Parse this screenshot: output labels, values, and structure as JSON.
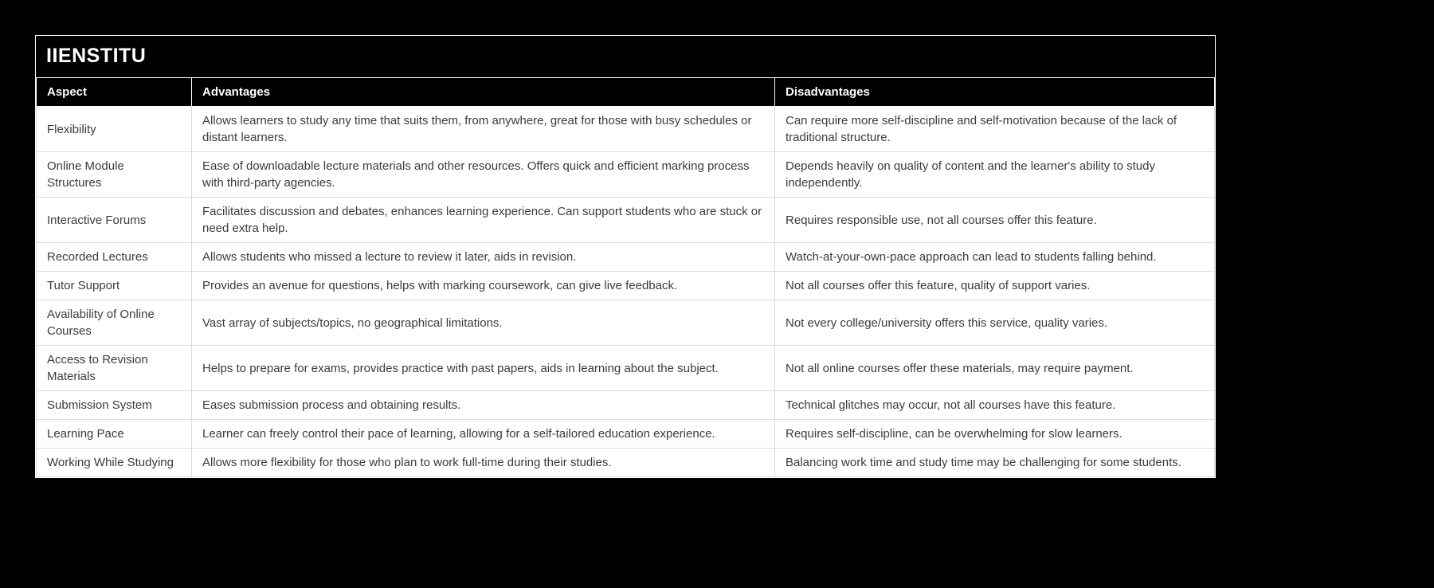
{
  "page": {
    "title": "IIENSTITU"
  },
  "colors": {
    "page_background": "#000000",
    "panel_border": "#ffffff",
    "header_background": "#000000",
    "header_text": "#ffffff",
    "body_background": "#ffffff",
    "body_text": "#3b3b3b",
    "row_divider": "#dcdcdc"
  },
  "table": {
    "columns": [
      "Aspect",
      "Advantages",
      "Disadvantages"
    ],
    "rows": [
      {
        "aspect": "Flexibility",
        "advantages": "Allows learners to study any time that suits them, from anywhere, great for those with busy schedules or distant learners.",
        "disadvantages": "Can require more self-discipline and self-motivation because of the lack of traditional structure."
      },
      {
        "aspect": "Online Module Structures",
        "advantages": "Ease of downloadable lecture materials and other resources. Offers quick and efficient marking process with third-party agencies.",
        "disadvantages": "Depends heavily on quality of content and the learner's ability to study independently."
      },
      {
        "aspect": "Interactive Forums",
        "advantages": "Facilitates discussion and debates, enhances learning experience. Can support students who are stuck or need extra help.",
        "disadvantages": "Requires responsible use, not all courses offer this feature."
      },
      {
        "aspect": "Recorded Lectures",
        "advantages": "Allows students who missed a lecture to review it later, aids in revision.",
        "disadvantages": "Watch-at-your-own-pace approach can lead to students falling behind."
      },
      {
        "aspect": "Tutor Support",
        "advantages": "Provides an avenue for questions, helps with marking coursework, can give live feedback.",
        "disadvantages": "Not all courses offer this feature, quality of support varies."
      },
      {
        "aspect": "Availability of Online Courses",
        "advantages": "Vast array of subjects/topics, no geographical limitations.",
        "disadvantages": "Not every college/university offers this service, quality varies."
      },
      {
        "aspect": "Access to Revision Materials",
        "advantages": "Helps to prepare for exams, provides practice with past papers, aids in learning about the subject.",
        "disadvantages": "Not all online courses offer these materials, may require payment."
      },
      {
        "aspect": "Submission System",
        "advantages": "Eases submission process and obtaining results.",
        "disadvantages": "Technical glitches may occur, not all courses have this feature."
      },
      {
        "aspect": "Learning Pace",
        "advantages": "Learner can freely control their pace of learning, allowing for a self-tailored education experience.",
        "disadvantages": "Requires self-discipline, can be overwhelming for slow learners."
      },
      {
        "aspect": "Working While Studying",
        "advantages": "Allows more flexibility for those who plan to work full-time during their studies.",
        "disadvantages": "Balancing work time and study time may be challenging for some students."
      }
    ]
  }
}
